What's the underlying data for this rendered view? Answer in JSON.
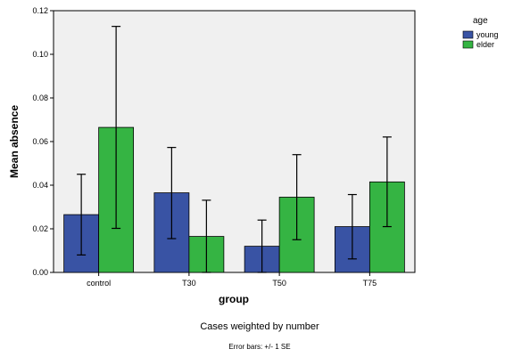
{
  "chart_data": {
    "type": "bar",
    "categories": [
      "control",
      "T30",
      "T50",
      "T75"
    ],
    "series": [
      {
        "name": "young",
        "color": "#3953a4",
        "values": [
          0.0265,
          0.0365,
          0.012,
          0.021
        ],
        "error_low": [
          0.008,
          0.0155,
          0.0,
          0.0062
        ],
        "error_high": [
          0.045,
          0.0573,
          0.024,
          0.0357
        ]
      },
      {
        "name": "elder",
        "color": "#35b443",
        "values": [
          0.0665,
          0.0165,
          0.0345,
          0.0415
        ],
        "error_low": [
          0.0202,
          0.0,
          0.015,
          0.021
        ],
        "error_high": [
          0.1128,
          0.0331,
          0.054,
          0.0621
        ]
      }
    ],
    "xlabel": "group",
    "ylabel": "Mean absence",
    "ylim": [
      0,
      0.12
    ],
    "yticks": [
      "0.00",
      "0.02",
      "0.04",
      "0.06",
      "0.08",
      "0.10",
      "0.12"
    ],
    "legend_title": "age",
    "legend_position": "top-right",
    "grid": false,
    "plot_background": "#f0f0f0",
    "footer_note": "Cases weighted by number",
    "error_bar_note": "Error bars: +/- 1 SE"
  }
}
